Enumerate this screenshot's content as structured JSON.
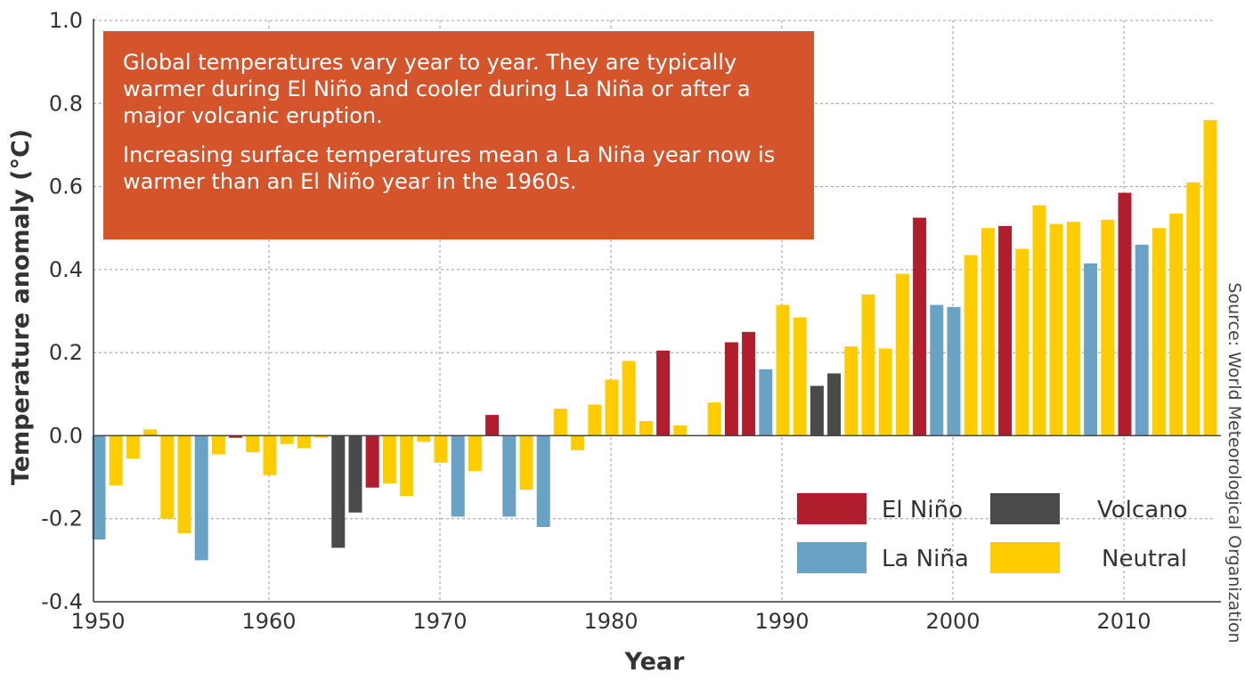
{
  "annotation": {
    "line1": "Global temperatures vary year to year. They are typically warmer during El Niño and cooler during La Niña or after a major volcanic eruption.",
    "line2": "Increasing surface temperatures mean a La Niña year now is warmer than an El Niño year in the 1960s."
  },
  "source": "Source: World Meteorological Organization",
  "chart_data": {
    "type": "bar",
    "xlabel": "Year",
    "ylabel": "Temperature anomaly (°C)",
    "ylim": [
      -0.4,
      1.0
    ],
    "yticks": [
      -0.4,
      -0.2,
      0.0,
      0.2,
      0.4,
      0.6,
      0.8,
      1.0
    ],
    "ytick_labels": [
      "-0.4",
      "-0.2",
      "0.0",
      "0.2",
      "0.4",
      "0.6",
      "0.8",
      "1.0"
    ],
    "xlim": [
      1950,
      2015
    ],
    "xticks": [
      1950,
      1960,
      1970,
      1980,
      1990,
      2000,
      2010
    ],
    "xtick_labels": [
      "1950",
      "1960",
      "1970",
      "1980",
      "1990",
      "2000",
      "2010"
    ],
    "grid": true,
    "colors": {
      "El Niño": "#b01e2e",
      "La Niña": "#6aa2c6",
      "Volcano": "#4a4a4a",
      "Neutral": "#ffcc00"
    },
    "legend": {
      "placement": "bottom-right",
      "entries": [
        "El Niño",
        "Volcano",
        "La Niña",
        "Neutral"
      ]
    },
    "data": [
      {
        "year": 1950,
        "value": -0.25,
        "category": "La Niña"
      },
      {
        "year": 1951,
        "value": -0.12,
        "category": "Neutral"
      },
      {
        "year": 1952,
        "value": -0.055,
        "category": "Neutral"
      },
      {
        "year": 1953,
        "value": 0.015,
        "category": "Neutral"
      },
      {
        "year": 1954,
        "value": -0.2,
        "category": "Neutral"
      },
      {
        "year": 1955,
        "value": -0.235,
        "category": "Neutral"
      },
      {
        "year": 1956,
        "value": -0.3,
        "category": "La Niña"
      },
      {
        "year": 1957,
        "value": -0.045,
        "category": "Neutral"
      },
      {
        "year": 1958,
        "value": -0.005,
        "category": "El Niño"
      },
      {
        "year": 1959,
        "value": -0.04,
        "category": "Neutral"
      },
      {
        "year": 1960,
        "value": -0.095,
        "category": "Neutral"
      },
      {
        "year": 1961,
        "value": -0.02,
        "category": "Neutral"
      },
      {
        "year": 1962,
        "value": -0.03,
        "category": "Neutral"
      },
      {
        "year": 1963,
        "value": -0.005,
        "category": "Neutral"
      },
      {
        "year": 1964,
        "value": -0.27,
        "category": "Volcano"
      },
      {
        "year": 1965,
        "value": -0.185,
        "category": "Volcano"
      },
      {
        "year": 1966,
        "value": -0.125,
        "category": "El Niño"
      },
      {
        "year": 1967,
        "value": -0.115,
        "category": "Neutral"
      },
      {
        "year": 1968,
        "value": -0.145,
        "category": "Neutral"
      },
      {
        "year": 1969,
        "value": -0.015,
        "category": "Neutral"
      },
      {
        "year": 1970,
        "value": -0.065,
        "category": "Neutral"
      },
      {
        "year": 1971,
        "value": -0.195,
        "category": "La Niña"
      },
      {
        "year": 1972,
        "value": -0.085,
        "category": "Neutral"
      },
      {
        "year": 1973,
        "value": 0.05,
        "category": "El Niño"
      },
      {
        "year": 1974,
        "value": -0.195,
        "category": "La Niña"
      },
      {
        "year": 1975,
        "value": -0.13,
        "category": "Neutral"
      },
      {
        "year": 1976,
        "value": -0.22,
        "category": "La Niña"
      },
      {
        "year": 1977,
        "value": 0.065,
        "category": "Neutral"
      },
      {
        "year": 1978,
        "value": -0.035,
        "category": "Neutral"
      },
      {
        "year": 1979,
        "value": 0.075,
        "category": "Neutral"
      },
      {
        "year": 1980,
        "value": 0.135,
        "category": "Neutral"
      },
      {
        "year": 1981,
        "value": 0.18,
        "category": "Neutral"
      },
      {
        "year": 1982,
        "value": 0.035,
        "category": "Neutral"
      },
      {
        "year": 1983,
        "value": 0.205,
        "category": "El Niño"
      },
      {
        "year": 1984,
        "value": 0.025,
        "category": "Neutral"
      },
      {
        "year": 1985,
        "value": 0.0,
        "category": "Neutral"
      },
      {
        "year": 1986,
        "value": 0.08,
        "category": "Neutral"
      },
      {
        "year": 1987,
        "value": 0.225,
        "category": "El Niño"
      },
      {
        "year": 1988,
        "value": 0.25,
        "category": "El Niño"
      },
      {
        "year": 1989,
        "value": 0.16,
        "category": "La Niña"
      },
      {
        "year": 1990,
        "value": 0.315,
        "category": "Neutral"
      },
      {
        "year": 1991,
        "value": 0.285,
        "category": "Neutral"
      },
      {
        "year": 1992,
        "value": 0.12,
        "category": "Volcano"
      },
      {
        "year": 1993,
        "value": 0.15,
        "category": "Volcano"
      },
      {
        "year": 1994,
        "value": 0.215,
        "category": "Neutral"
      },
      {
        "year": 1995,
        "value": 0.34,
        "category": "Neutral"
      },
      {
        "year": 1996,
        "value": 0.21,
        "category": "Neutral"
      },
      {
        "year": 1997,
        "value": 0.39,
        "category": "Neutral"
      },
      {
        "year": 1998,
        "value": 0.525,
        "category": "El Niño"
      },
      {
        "year": 1999,
        "value": 0.315,
        "category": "La Niña"
      },
      {
        "year": 2000,
        "value": 0.31,
        "category": "La Niña"
      },
      {
        "year": 2001,
        "value": 0.435,
        "category": "Neutral"
      },
      {
        "year": 2002,
        "value": 0.5,
        "category": "Neutral"
      },
      {
        "year": 2003,
        "value": 0.505,
        "category": "El Niño"
      },
      {
        "year": 2004,
        "value": 0.45,
        "category": "Neutral"
      },
      {
        "year": 2005,
        "value": 0.555,
        "category": "Neutral"
      },
      {
        "year": 2006,
        "value": 0.51,
        "category": "Neutral"
      },
      {
        "year": 2007,
        "value": 0.515,
        "category": "Neutral"
      },
      {
        "year": 2008,
        "value": 0.415,
        "category": "La Niña"
      },
      {
        "year": 2009,
        "value": 0.52,
        "category": "Neutral"
      },
      {
        "year": 2010,
        "value": 0.585,
        "category": "El Niño"
      },
      {
        "year": 2011,
        "value": 0.46,
        "category": "La Niña"
      },
      {
        "year": 2012,
        "value": 0.5,
        "category": "Neutral"
      },
      {
        "year": 2013,
        "value": 0.535,
        "category": "Neutral"
      },
      {
        "year": 2014,
        "value": 0.61,
        "category": "Neutral"
      },
      {
        "year": 2015,
        "value": 0.76,
        "category": "Neutral"
      }
    ]
  }
}
